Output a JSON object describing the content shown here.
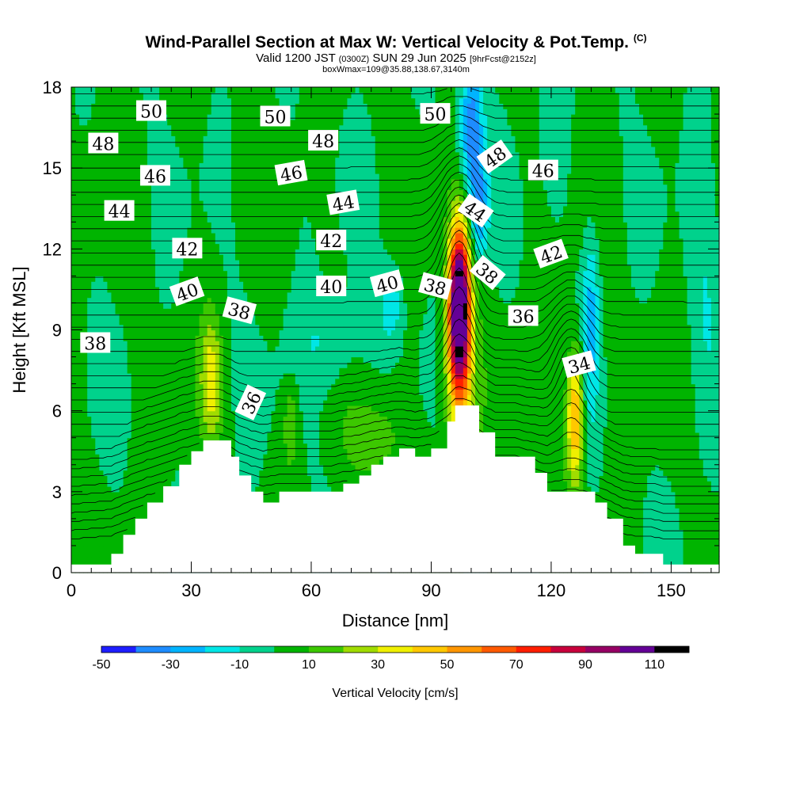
{
  "title": "Wind-Parallel Section at Max W: Vertical Velocity & Pot.Temp.",
  "title_tag": "(C)",
  "subtitle_main": "Valid 1200 JST",
  "subtitle_z": "(0300Z)",
  "subtitle_date": "SUN 29 Jun 2025",
  "subtitle_fcst": "[9hrFcst@2152z]",
  "subtitle2": "boxWmax=109@35.88,138.67,3140m",
  "colors": {
    "levels": [
      "#1e1eff",
      "#1e8cff",
      "#00b4ff",
      "#00e6e6",
      "#00d28c",
      "#00b400",
      "#3cc800",
      "#a0dc00",
      "#f0f000",
      "#ffc800",
      "#ff9600",
      "#ff5a00",
      "#ff1e00",
      "#c8003c",
      "#960064",
      "#640096"
    ],
    "terrain": "#ffffff"
  },
  "chart_data": {
    "type": "heatmap",
    "title": "Wind-Parallel Section at Max W: Vertical Velocity & Pot.Temp.",
    "xlabel": "Distance [nm]",
    "ylabel": "Height [Kft MSL]",
    "xlim": [
      0,
      162
    ],
    "ylim": [
      0,
      18
    ],
    "xticks": [
      0,
      30,
      60,
      90,
      120,
      150
    ],
    "yticks": [
      0,
      3,
      6,
      9,
      12,
      15,
      18
    ],
    "colorbar": {
      "label": "Vertical Velocity [cm/s]",
      "ticks": [
        -50,
        -30,
        -10,
        10,
        30,
        50,
        70,
        90,
        110
      ],
      "boundaries": [
        -50,
        -40,
        -30,
        -20,
        -10,
        0,
        10,
        20,
        30,
        40,
        50,
        60,
        70,
        80,
        90,
        100,
        110,
        120
      ]
    },
    "max_w": {
      "value": 109,
      "x": 97,
      "y": 10
    },
    "terrain_profile": [
      [
        0,
        0.3
      ],
      [
        10,
        0.7
      ],
      [
        13,
        1.4
      ],
      [
        16,
        2.0
      ],
      [
        19,
        2.6
      ],
      [
        23,
        3.2
      ],
      [
        27,
        4.0
      ],
      [
        30,
        4.5
      ],
      [
        33,
        4.9
      ],
      [
        37,
        4.9
      ],
      [
        40,
        4.3
      ],
      [
        42,
        3.6
      ],
      [
        45,
        3.0
      ],
      [
        48,
        2.6
      ],
      [
        52,
        3.0
      ],
      [
        60,
        3.0
      ],
      [
        65,
        3.0
      ],
      [
        68,
        3.3
      ],
      [
        72,
        3.6
      ],
      [
        75,
        4.0
      ],
      [
        78,
        4.3
      ],
      [
        82,
        4.6
      ],
      [
        86,
        4.3
      ],
      [
        90,
        4.6
      ],
      [
        94,
        5.6
      ],
      [
        96,
        6.2
      ],
      [
        100,
        6.2
      ],
      [
        102,
        5.2
      ],
      [
        106,
        4.3
      ],
      [
        111,
        4.3
      ],
      [
        116,
        3.7
      ],
      [
        119,
        3.0
      ],
      [
        122,
        3.0
      ],
      [
        125,
        3.0
      ],
      [
        128,
        3.0
      ],
      [
        131,
        2.6
      ],
      [
        134,
        2.0
      ],
      [
        138,
        1.0
      ],
      [
        141,
        0.7
      ],
      [
        145,
        0.7
      ],
      [
        148,
        0.3
      ],
      [
        162,
        0.3
      ]
    ],
    "w_features": [
      {
        "x": 97,
        "y": 10,
        "sx": 1.8,
        "sy": 2.0,
        "amp": 120
      },
      {
        "x": 97,
        "y": 7.5,
        "sx": 2.6,
        "sy": 2.5,
        "amp": 40
      },
      {
        "x": 126,
        "y": 5.8,
        "sx": 1.5,
        "sy": 1.8,
        "amp": 55
      },
      {
        "x": 35,
        "y": 7.2,
        "sx": 1.8,
        "sy": 1.6,
        "amp": 30
      },
      {
        "x": 55,
        "y": 5.5,
        "sx": 1.2,
        "sy": 1.0,
        "amp": 20
      },
      {
        "x": 77,
        "y": 5.0,
        "sx": 5,
        "sy": 1.2,
        "amp": 14
      },
      {
        "x": 100,
        "y": 16.5,
        "sx": 2.0,
        "sy": 1.8,
        "amp": -40
      },
      {
        "x": 102,
        "y": 13.5,
        "sx": 1.5,
        "sy": 1.3,
        "amp": -30
      },
      {
        "x": 130,
        "y": 9.5,
        "sx": 1.5,
        "sy": 2.4,
        "amp": -25
      },
      {
        "x": 65,
        "y": 8.5,
        "sx": 6,
        "sy": 1.4,
        "amp": -14
      },
      {
        "x": 80,
        "y": 10,
        "sx": 2,
        "sy": 1,
        "amp": -20
      },
      {
        "x": 121,
        "y": 16,
        "sx": 2.5,
        "sy": 2,
        "amp": -10
      },
      {
        "x": 158,
        "y": 10,
        "sx": 3,
        "sy": 4,
        "amp": -10
      }
    ],
    "theta_levels": [
      30,
      50
    ],
    "contour_labels": [
      {
        "text": "50",
        "x": 20,
        "y": 17.1,
        "angle": 0
      },
      {
        "text": "50",
        "x": 51,
        "y": 16.9,
        "angle": 0
      },
      {
        "text": "50",
        "x": 91,
        "y": 17.0,
        "angle": 0
      },
      {
        "text": "48",
        "x": 8,
        "y": 15.9,
        "angle": 0
      },
      {
        "text": "48",
        "x": 63,
        "y": 16.0,
        "angle": 0
      },
      {
        "text": "48",
        "x": 106,
        "y": 15.4,
        "angle": -35
      },
      {
        "text": "46",
        "x": 21,
        "y": 14.7,
        "angle": 0
      },
      {
        "text": "46",
        "x": 55,
        "y": 14.8,
        "angle": -10
      },
      {
        "text": "46",
        "x": 118,
        "y": 14.9,
        "angle": 0
      },
      {
        "text": "44",
        "x": 12,
        "y": 13.4,
        "angle": 0
      },
      {
        "text": "44",
        "x": 68,
        "y": 13.7,
        "angle": -10
      },
      {
        "text": "44",
        "x": 101,
        "y": 13.4,
        "angle": 35
      },
      {
        "text": "42",
        "x": 29,
        "y": 12.0,
        "angle": 0
      },
      {
        "text": "42",
        "x": 65,
        "y": 12.3,
        "angle": 0
      },
      {
        "text": "42",
        "x": 120,
        "y": 11.8,
        "angle": -20
      },
      {
        "text": "40",
        "x": 29,
        "y": 10.4,
        "angle": -20
      },
      {
        "text": "40",
        "x": 65,
        "y": 10.6,
        "angle": 0
      },
      {
        "text": "40",
        "x": 79,
        "y": 10.7,
        "angle": -15
      },
      {
        "text": "38",
        "x": 6,
        "y": 8.5,
        "angle": 0
      },
      {
        "text": "38",
        "x": 42,
        "y": 9.7,
        "angle": 15
      },
      {
        "text": "38",
        "x": 91,
        "y": 10.6,
        "angle": 15
      },
      {
        "text": "38",
        "x": 104,
        "y": 11.1,
        "angle": 40
      },
      {
        "text": "36",
        "x": 45,
        "y": 6.3,
        "angle": -65
      },
      {
        "text": "36",
        "x": 113,
        "y": 9.5,
        "angle": 0
      },
      {
        "text": "34",
        "x": 127,
        "y": 7.7,
        "angle": -15
      }
    ]
  }
}
